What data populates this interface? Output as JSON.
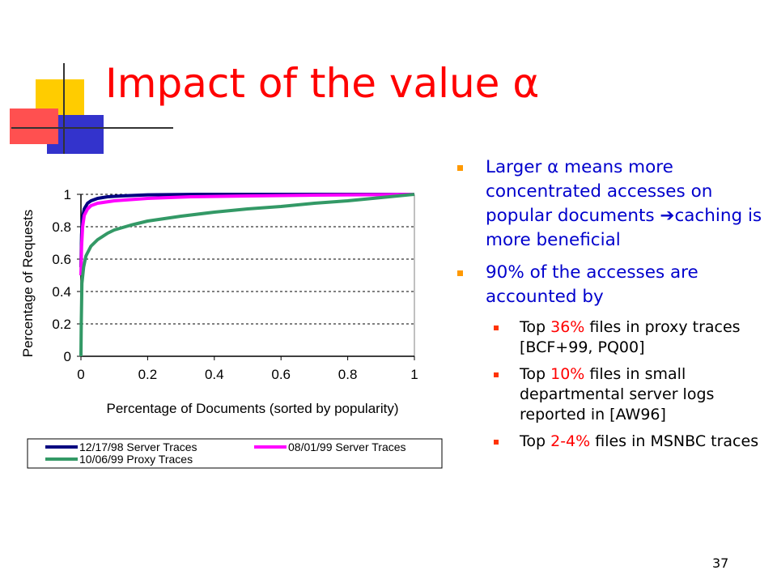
{
  "slide": {
    "title": "Impact of the value α",
    "number": "37"
  },
  "bullets": [
    {
      "parts": [
        {
          "text": "Larger α means more concentrated accesses on popular documents ",
          "color": "#0000cc"
        },
        {
          "text": "➔",
          "color": "#0000cc"
        },
        {
          "text": "caching is more beneficial",
          "color": "#0000cc"
        }
      ]
    },
    {
      "parts": [
        {
          "text": "90% of the accesses are accounted by",
          "color": "#0000cc"
        }
      ],
      "sub": [
        {
          "pre": "Top ",
          "hl": "36%",
          "post": " files in proxy traces [BCF+99, PQ00]"
        },
        {
          "pre": "Top ",
          "hl": "10%",
          "post": " files in small departmental server logs reported in [AW96]"
        },
        {
          "pre": "Top ",
          "hl": "2-4%",
          "post": " files in MSNBC traces"
        }
      ]
    }
  ],
  "chart_data": {
    "type": "line",
    "xlabel": "Percentage of Documents (sorted by popularity)",
    "ylabel": "Percentage of Requests",
    "xlim": [
      0,
      1
    ],
    "ylim": [
      0,
      1
    ],
    "xticks": [
      "0",
      "0.2",
      "0.4",
      "0.6",
      "0.8",
      "1"
    ],
    "yticks": [
      "0",
      "0.2",
      "0.4",
      "0.6",
      "0.8",
      "1"
    ],
    "grid": "horizontal dashed",
    "legend_position": "bottom",
    "series": [
      {
        "name": "12/17/98 Server Traces",
        "color": "#000080",
        "points": [
          [
            0,
            0.55
          ],
          [
            0.002,
            0.75
          ],
          [
            0.005,
            0.86
          ],
          [
            0.01,
            0.91
          ],
          [
            0.02,
            0.945
          ],
          [
            0.03,
            0.96
          ],
          [
            0.05,
            0.975
          ],
          [
            0.08,
            0.985
          ],
          [
            0.12,
            0.99
          ],
          [
            0.2,
            0.997
          ],
          [
            0.35,
            1.0
          ],
          [
            1.0,
            1.0
          ]
        ]
      },
      {
        "name": "08/01/99 Server Traces",
        "color": "#ff00ff",
        "points": [
          [
            0,
            0.5
          ],
          [
            0.002,
            0.68
          ],
          [
            0.005,
            0.8
          ],
          [
            0.01,
            0.87
          ],
          [
            0.02,
            0.91
          ],
          [
            0.03,
            0.93
          ],
          [
            0.05,
            0.945
          ],
          [
            0.1,
            0.96
          ],
          [
            0.2,
            0.975
          ],
          [
            0.33,
            0.985
          ],
          [
            0.5,
            0.99
          ],
          [
            0.7,
            0.995
          ],
          [
            0.9,
            0.998
          ],
          [
            1.0,
            1.0
          ]
        ]
      },
      {
        "name": "10/06/99 Proxy Traces",
        "color": "#339966",
        "points": [
          [
            0,
            0.0
          ],
          [
            0.001,
            0.2
          ],
          [
            0.003,
            0.45
          ],
          [
            0.008,
            0.55
          ],
          [
            0.015,
            0.62
          ],
          [
            0.03,
            0.68
          ],
          [
            0.05,
            0.72
          ],
          [
            0.08,
            0.76
          ],
          [
            0.1,
            0.78
          ],
          [
            0.15,
            0.81
          ],
          [
            0.2,
            0.835
          ],
          [
            0.3,
            0.865
          ],
          [
            0.4,
            0.89
          ],
          [
            0.5,
            0.91
          ],
          [
            0.6,
            0.925
          ],
          [
            0.7,
            0.945
          ],
          [
            0.8,
            0.96
          ],
          [
            0.9,
            0.98
          ],
          [
            1.0,
            1.0
          ]
        ]
      }
    ]
  }
}
